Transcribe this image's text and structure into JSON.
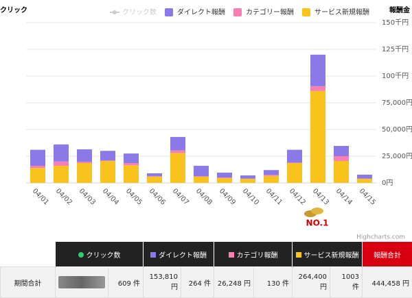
{
  "chart_data": {
    "type": "stacked_bar",
    "left_axis_title": "クリック",
    "right_axis_title": "報酬金",
    "categories": [
      "04/01",
      "04/02",
      "04/03",
      "04/04",
      "04/05",
      "04/06",
      "04/07",
      "04/08",
      "04/09",
      "04/10",
      "04/11",
      "04/12",
      "04/13",
      "04/14",
      "04/15"
    ],
    "series": [
      {
        "name": "クリック数",
        "color": "#cccccc",
        "visible": false
      },
      {
        "name": "ダイレクト報酬",
        "color": "#8a79e6",
        "values": [
          15000,
          16000,
          11500,
          9000,
          9000,
          2700,
          12500,
          9600,
          4600,
          2900,
          4500,
          12000,
          29500,
          9600,
          3600
        ]
      },
      {
        "name": "カテゴリー報酬",
        "color": "#f77fb3",
        "values": [
          2000,
          4000,
          1300,
          500,
          2000,
          500,
          2500,
          600,
          500,
          300,
          1000,
          400,
          4500,
          4500,
          300
        ]
      },
      {
        "name": "サービス新規報酬",
        "color": "#f8c31c",
        "values": [
          14000,
          16000,
          18600,
          20500,
          16500,
          5800,
          28000,
          5800,
          4500,
          3800,
          6500,
          18600,
          86000,
          20500,
          3800
        ]
      }
    ],
    "ylim": [
      0,
      150000
    ],
    "yticks": [
      {
        "value": 0,
        "label": "0円"
      },
      {
        "value": 25000,
        "label": "25,000円"
      },
      {
        "value": 50000,
        "label": "50,000円"
      },
      {
        "value": 75000,
        "label": "75,000円"
      },
      {
        "value": 100000,
        "label": "100千円"
      },
      {
        "value": 125000,
        "label": "125千円"
      },
      {
        "value": 150000,
        "label": "150千円"
      }
    ],
    "grid": true,
    "credit": "Highcharts.com",
    "badge": "NO.1"
  },
  "table": {
    "header": [
      "クリック数",
      "ダイレクト報酬",
      "カテゴリ報酬",
      "サービス新規報酬",
      "報酬合計"
    ],
    "row_label": "期間合計",
    "cells": [
      "609 件",
      "153,810 円",
      "264 件",
      "26,248 円",
      "130 件",
      "264,400 円",
      "1003 件",
      "444,458 円"
    ]
  }
}
